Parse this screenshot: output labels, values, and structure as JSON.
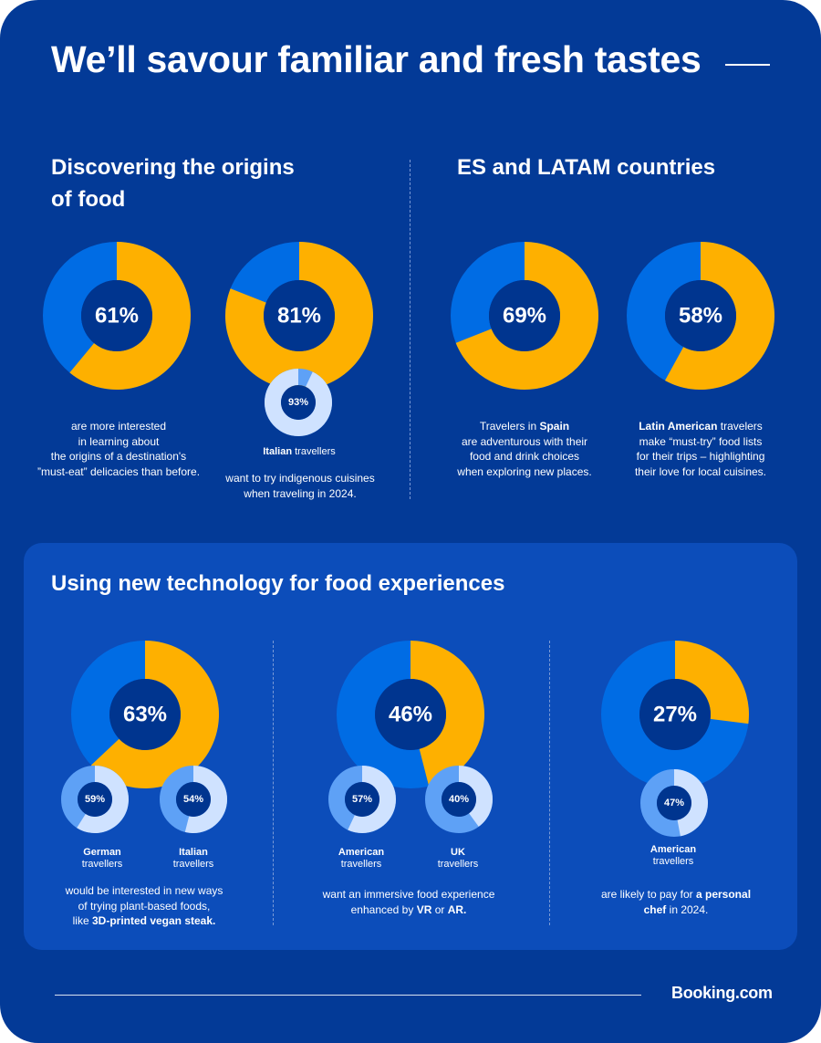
{
  "page": {
    "title": "We’ll savour familiar and fresh tastes",
    "brand": "Booking.com"
  },
  "colors": {
    "background": "#033a97",
    "panel": "#0c4dba",
    "orange": "#feb000",
    "blue": "#006ce4",
    "hole": "#00358f",
    "light": "#cfe2ff",
    "light_blue": "#5ea1f6"
  },
  "section_origins": {
    "heading_line1": "Discovering the origins",
    "heading_line2": "of food",
    "stat1": {
      "caption_lines": [
        "are more interested",
        "in learning about",
        "the origins of a destination's",
        "”must-eat” delicacies than before."
      ]
    },
    "stat2": {
      "label_bold": "Italian",
      "label_rest": " travellers",
      "caption_lines": [
        "want to try indigenous cuisines",
        "when traveling in 2024."
      ]
    }
  },
  "section_es": {
    "heading": "ES and LATAM countries",
    "stat1": {
      "line1_pre": "Travelers in ",
      "line1_bold": "Spain",
      "caption_lines": [
        "are adventurous with their",
        "food and drink choices",
        "when exploring new places."
      ]
    },
    "stat2": {
      "line1_bold": "Latin American",
      "line1_rest": " travelers",
      "caption_lines": [
        "make “must-try” food lists",
        "for their trips – highlighting",
        "their love for local cuisines."
      ]
    }
  },
  "section_tech": {
    "heading": "Using new technology for food experiences",
    "col1": {
      "label_a": [
        "German",
        "travellers"
      ],
      "label_b": [
        "Italian",
        "travellers"
      ],
      "caption_line1": "would be interested in new ways",
      "caption_line2": "of trying plant-based foods,",
      "caption_line3_pre": "like ",
      "caption_line3_bold": "3D-printed vegan steak."
    },
    "col2": {
      "label_a": [
        "American",
        "travellers"
      ],
      "label_b": [
        "UK",
        "travellers"
      ],
      "caption_line1": "want an immersive food experience",
      "caption_line2_pre": "enhanced by ",
      "caption_line2_bold1": "VR",
      "caption_line2_mid": " or ",
      "caption_line2_bold2": "AR."
    },
    "col3": {
      "label_a": [
        "American",
        "travellers"
      ],
      "caption_line1_pre": "are likely to pay for ",
      "caption_line1_bold": "a personal",
      "caption_line2_bold": "chef",
      "caption_line2_rest": " in 2024."
    }
  },
  "chart_data": [
    {
      "type": "pie",
      "title": "Discovering the origins of food",
      "values": [
        {
          "label": "61%",
          "value": 61,
          "style": "big"
        },
        {
          "label": "81%",
          "value": 81,
          "style": "big"
        },
        {
          "label": "93%",
          "value": 93,
          "style": "small"
        }
      ]
    },
    {
      "type": "pie",
      "title": "ES and LATAM countries",
      "values": [
        {
          "label": "69%",
          "value": 69,
          "style": "big"
        },
        {
          "label": "58%",
          "value": 58,
          "style": "big"
        }
      ]
    },
    {
      "type": "pie",
      "title": "Using new technology for food experiences",
      "values": [
        {
          "label": "63%",
          "value": 63,
          "style": "big"
        },
        {
          "label": "59%",
          "value": 59,
          "style": "small"
        },
        {
          "label": "54%",
          "value": 54,
          "style": "small"
        },
        {
          "label": "46%",
          "value": 46,
          "style": "big"
        },
        {
          "label": "57%",
          "value": 57,
          "style": "small"
        },
        {
          "label": "40%",
          "value": 40,
          "style": "small"
        },
        {
          "label": "27%",
          "value": 27,
          "style": "big"
        },
        {
          "label": "47%",
          "value": 47,
          "style": "small"
        }
      ]
    }
  ]
}
